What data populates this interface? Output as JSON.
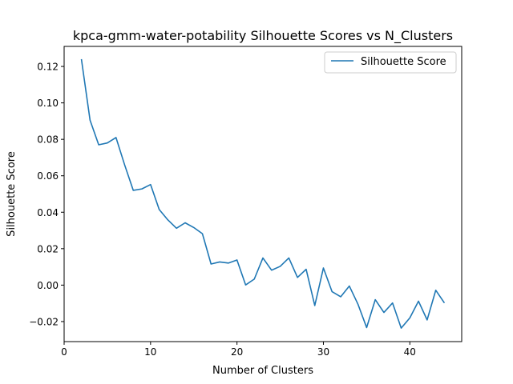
{
  "chart_data": {
    "type": "line",
    "title": "kpca-gmm-water-potability Silhouette Scores vs N_Clusters",
    "xlabel": "Number of Clusters",
    "ylabel": "Silhouette Score",
    "xlim": [
      0,
      46
    ],
    "ylim": [
      -0.031,
      0.131
    ],
    "x_ticks": [
      0,
      10,
      20,
      30,
      40
    ],
    "x_tick_labels": [
      "0",
      "10",
      "20",
      "30",
      "40"
    ],
    "y_ticks": [
      -0.02,
      0.0,
      0.02,
      0.04,
      0.06,
      0.08,
      0.1,
      0.12
    ],
    "y_tick_labels": [
      "−0.02",
      "0.00",
      "0.02",
      "0.04",
      "0.06",
      "0.08",
      "0.10",
      "0.12"
    ],
    "grid": false,
    "legend_position": "top-right",
    "series": [
      {
        "name": "Silhouette Score",
        "color": "#1f77b4",
        "x": [
          2,
          3,
          4,
          5,
          6,
          7,
          8,
          9,
          10,
          11,
          12,
          13,
          14,
          15,
          16,
          17,
          18,
          19,
          20,
          21,
          22,
          23,
          24,
          25,
          26,
          27,
          28,
          29,
          30,
          31,
          32,
          33,
          34,
          35,
          36,
          37,
          38,
          39,
          40,
          41,
          42,
          43,
          44
        ],
        "y": [
          0.124,
          0.0905,
          0.077,
          0.078,
          0.081,
          0.066,
          0.052,
          0.0528,
          0.0552,
          0.0415,
          0.0358,
          0.0312,
          0.0342,
          0.0316,
          0.0282,
          0.0116,
          0.0127,
          0.0121,
          0.0138,
          0.0001,
          0.0033,
          0.0149,
          0.0082,
          0.0103,
          0.0149,
          0.0042,
          0.0087,
          -0.0112,
          0.0094,
          -0.0036,
          -0.0064,
          -0.0005,
          -0.0105,
          -0.0233,
          -0.008,
          -0.015,
          -0.0098,
          -0.0236,
          -0.018,
          -0.0088,
          -0.0191,
          -0.0028,
          -0.0098
        ]
      }
    ]
  }
}
